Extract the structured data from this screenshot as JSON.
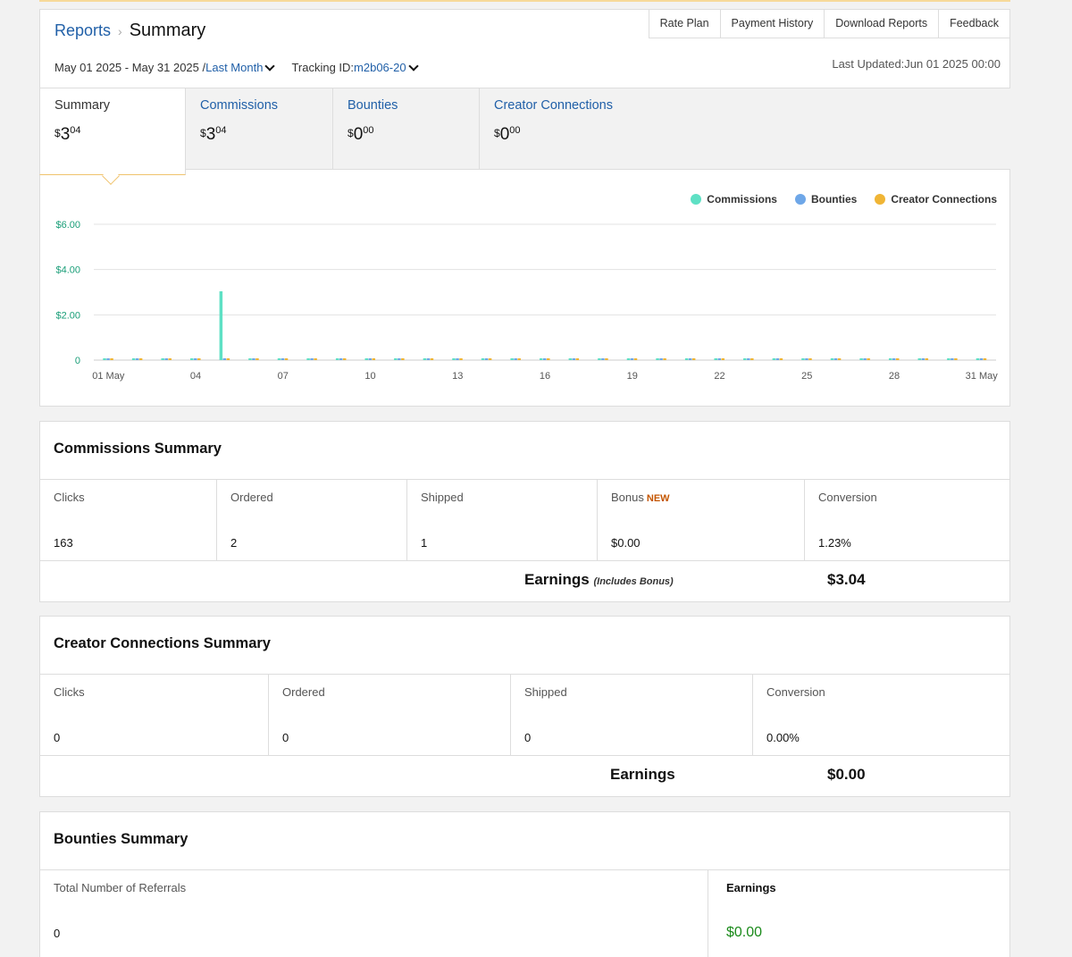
{
  "breadcrumb": {
    "parent": "Reports",
    "current": "Summary"
  },
  "top_links": [
    "Rate Plan",
    "Payment History",
    "Download Reports",
    "Feedback"
  ],
  "date_range": {
    "text": "May 01 2025 - May 31 2025 /",
    "period": "Last Month"
  },
  "tracking": {
    "label": "Tracking ID:",
    "id": "m2b06-20"
  },
  "last_updated": "Last Updated:Jun 01 2025 00:00",
  "tabs": [
    {
      "label": "Summary",
      "currency": "$",
      "main": "3",
      "cents": "04"
    },
    {
      "label": "Commissions",
      "currency": "$",
      "main": "3",
      "cents": "04"
    },
    {
      "label": "Bounties",
      "currency": "$",
      "main": "0",
      "cents": "00"
    },
    {
      "label": "Creator Connections",
      "currency": "$",
      "main": "0",
      "cents": "00"
    }
  ],
  "colors": {
    "commissions": "#5ee0c4",
    "bounties": "#6ea7e8",
    "creator_connections": "#f0b535",
    "link": "#2160a8",
    "axis_label": "#1a9e78"
  },
  "chart_data": {
    "type": "bar",
    "legend": [
      "Commissions",
      "Bounties",
      "Creator Connections"
    ],
    "legend_position": "top-right",
    "x": [
      "01",
      "02",
      "03",
      "04",
      "05",
      "06",
      "07",
      "08",
      "09",
      "10",
      "11",
      "12",
      "13",
      "14",
      "15",
      "16",
      "17",
      "18",
      "19",
      "20",
      "21",
      "22",
      "23",
      "24",
      "25",
      "26",
      "27",
      "28",
      "29",
      "30",
      "31"
    ],
    "tick_labels": [
      "01 May",
      "04",
      "07",
      "10",
      "13",
      "16",
      "19",
      "22",
      "25",
      "28",
      "31 May"
    ],
    "tick_indices": [
      0,
      3,
      6,
      9,
      12,
      15,
      18,
      21,
      24,
      27,
      30
    ],
    "y_ticks": [
      "0",
      "$2.00",
      "$4.00",
      "$6.00"
    ],
    "ylim": [
      0,
      6
    ],
    "grid": true,
    "series": [
      {
        "name": "Commissions",
        "values": [
          0,
          0,
          0,
          0,
          3.04,
          0,
          0,
          0,
          0,
          0,
          0,
          0,
          0,
          0,
          0,
          0,
          0,
          0,
          0,
          0,
          0,
          0,
          0,
          0,
          0,
          0,
          0,
          0,
          0,
          0,
          0
        ]
      },
      {
        "name": "Bounties",
        "values": [
          0,
          0,
          0,
          0,
          0,
          0,
          0,
          0,
          0,
          0,
          0,
          0,
          0,
          0,
          0,
          0,
          0,
          0,
          0,
          0,
          0,
          0,
          0,
          0,
          0,
          0,
          0,
          0,
          0,
          0,
          0
        ]
      },
      {
        "name": "Creator Connections",
        "values": [
          0,
          0,
          0,
          0,
          0,
          0,
          0,
          0,
          0,
          0,
          0,
          0,
          0,
          0,
          0,
          0,
          0,
          0,
          0,
          0,
          0,
          0,
          0,
          0,
          0,
          0,
          0,
          0,
          0,
          0,
          0
        ]
      }
    ]
  },
  "commissions_summary": {
    "title": "Commissions Summary",
    "cells": [
      {
        "label": "Clicks",
        "value": "163"
      },
      {
        "label": "Ordered",
        "value": "2"
      },
      {
        "label": "Shipped",
        "value": "1"
      },
      {
        "label": "Bonus",
        "badge": "NEW",
        "value": "$0.00"
      },
      {
        "label": "Conversion",
        "value": "1.23%"
      }
    ],
    "earnings_label": "Earnings",
    "earnings_note": "(Includes Bonus)",
    "earnings_value": "$3.04"
  },
  "creator_summary": {
    "title": "Creator Connections Summary",
    "cells": [
      {
        "label": "Clicks",
        "value": "0"
      },
      {
        "label": "Ordered",
        "value": "0"
      },
      {
        "label": "Shipped",
        "value": "0"
      },
      {
        "label": "Conversion",
        "value": "0.00%"
      }
    ],
    "earnings_label": "Earnings",
    "earnings_value": "$0.00"
  },
  "bounties_summary": {
    "title": "Bounties Summary",
    "referrals_label": "Total Number of Referrals",
    "referrals_value": "0",
    "earnings_label": "Earnings",
    "earnings_value": "$0.00"
  }
}
